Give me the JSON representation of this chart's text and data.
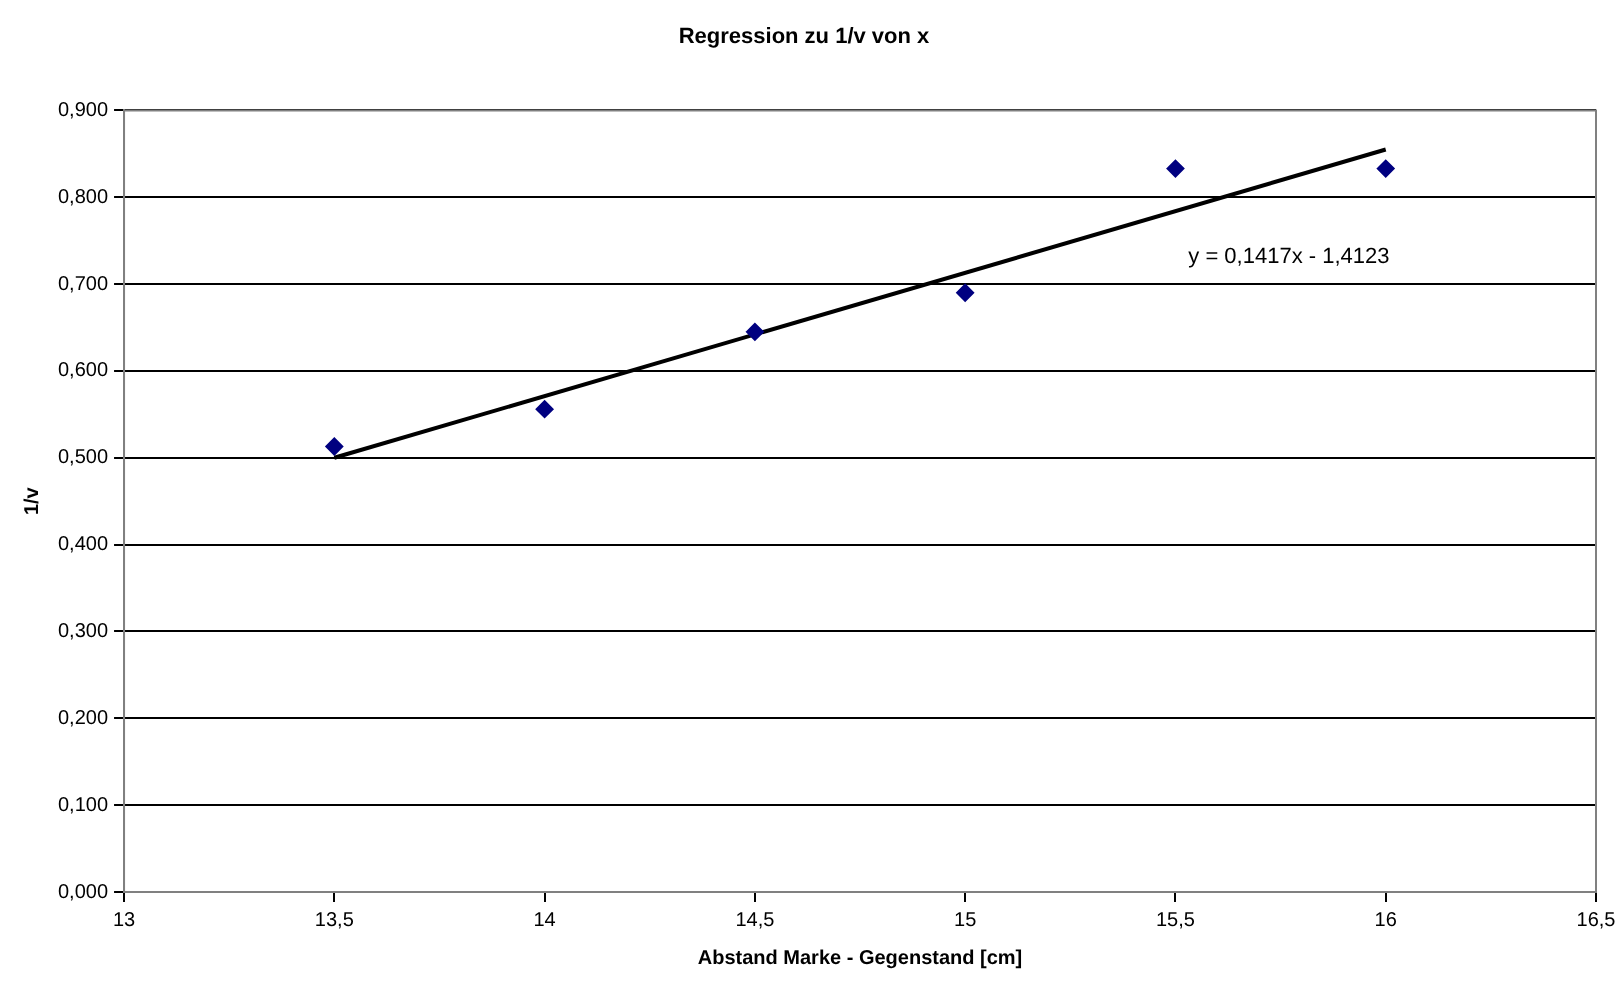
{
  "chart_data": {
    "type": "scatter",
    "title": "Regression zu 1/v von x",
    "xlabel": "Abstand Marke - Gegenstand [cm]",
    "ylabel": "1/v",
    "xlim": [
      13,
      16.5
    ],
    "xticks": [
      13,
      {
        "value": 13.5,
        "label": "13,5"
      },
      14,
      {
        "value": 14.5,
        "label": "14,5"
      },
      15,
      {
        "value": 15.5,
        "label": "15,5"
      },
      16,
      {
        "value": 16.5,
        "label": "16,5"
      }
    ],
    "ylim": [
      0,
      0.9
    ],
    "yticks": [
      {
        "value": 0,
        "label": "0,000"
      },
      {
        "value": 0.1,
        "label": "0,100"
      },
      {
        "value": 0.2,
        "label": "0,200"
      },
      {
        "value": 0.3,
        "label": "0,300"
      },
      {
        "value": 0.4,
        "label": "0,400"
      },
      {
        "value": 0.5,
        "label": "0,500"
      },
      {
        "value": 0.6,
        "label": "0,600"
      },
      {
        "value": 0.7,
        "label": "0,700"
      },
      {
        "value": 0.8,
        "label": "0,800"
      },
      {
        "value": 0.9,
        "label": "0,900"
      }
    ],
    "grid": "y",
    "legend": false,
    "series": [
      {
        "marker": "diamond",
        "color": "#000080",
        "x": [
          13.5,
          14,
          14.5,
          15,
          15.5,
          16
        ],
        "values": [
          0.513,
          0.556,
          0.645,
          0.69,
          0.833,
          0.833
        ]
      },
      {
        "type": "line",
        "color": "#000000",
        "x": [
          13.5,
          16
        ],
        "values": [
          0.5,
          0.855
        ]
      }
    ],
    "annotations": [
      "y = 0,1417x - 1,4123"
    ]
  }
}
